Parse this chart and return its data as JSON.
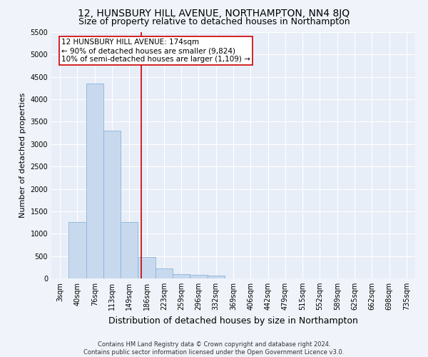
{
  "title": "12, HUNSBURY HILL AVENUE, NORTHAMPTON, NN4 8JQ",
  "subtitle": "Size of property relative to detached houses in Northampton",
  "xlabel": "Distribution of detached houses by size in Northampton",
  "ylabel": "Number of detached properties",
  "footer_line1": "Contains HM Land Registry data © Crown copyright and database right 2024.",
  "footer_line2": "Contains public sector information licensed under the Open Government Licence v3.0.",
  "categories": [
    "3sqm",
    "40sqm",
    "76sqm",
    "113sqm",
    "149sqm",
    "186sqm",
    "223sqm",
    "259sqm",
    "296sqm",
    "332sqm",
    "369sqm",
    "406sqm",
    "442sqm",
    "479sqm",
    "515sqm",
    "552sqm",
    "589sqm",
    "625sqm",
    "662sqm",
    "698sqm",
    "735sqm"
  ],
  "values": [
    0,
    1255,
    4350,
    3300,
    1255,
    480,
    220,
    90,
    80,
    60,
    0,
    0,
    0,
    0,
    0,
    0,
    0,
    0,
    0,
    0,
    0
  ],
  "bar_color": "#c8d9ee",
  "bar_edge_color": "#8ab4d8",
  "background_color": "#e8eef8",
  "grid_color": "#ffffff",
  "vline_color": "#cc0000",
  "annotation_box_color": "#cc0000",
  "ylim": [
    0,
    5500
  ],
  "yticks": [
    0,
    500,
    1000,
    1500,
    2000,
    2500,
    3000,
    3500,
    4000,
    4500,
    5000,
    5500
  ],
  "title_fontsize": 10,
  "subtitle_fontsize": 9,
  "xlabel_fontsize": 9,
  "ylabel_fontsize": 8,
  "tick_fontsize": 7,
  "annotation_fontsize": 7.5,
  "footer_fontsize": 6
}
